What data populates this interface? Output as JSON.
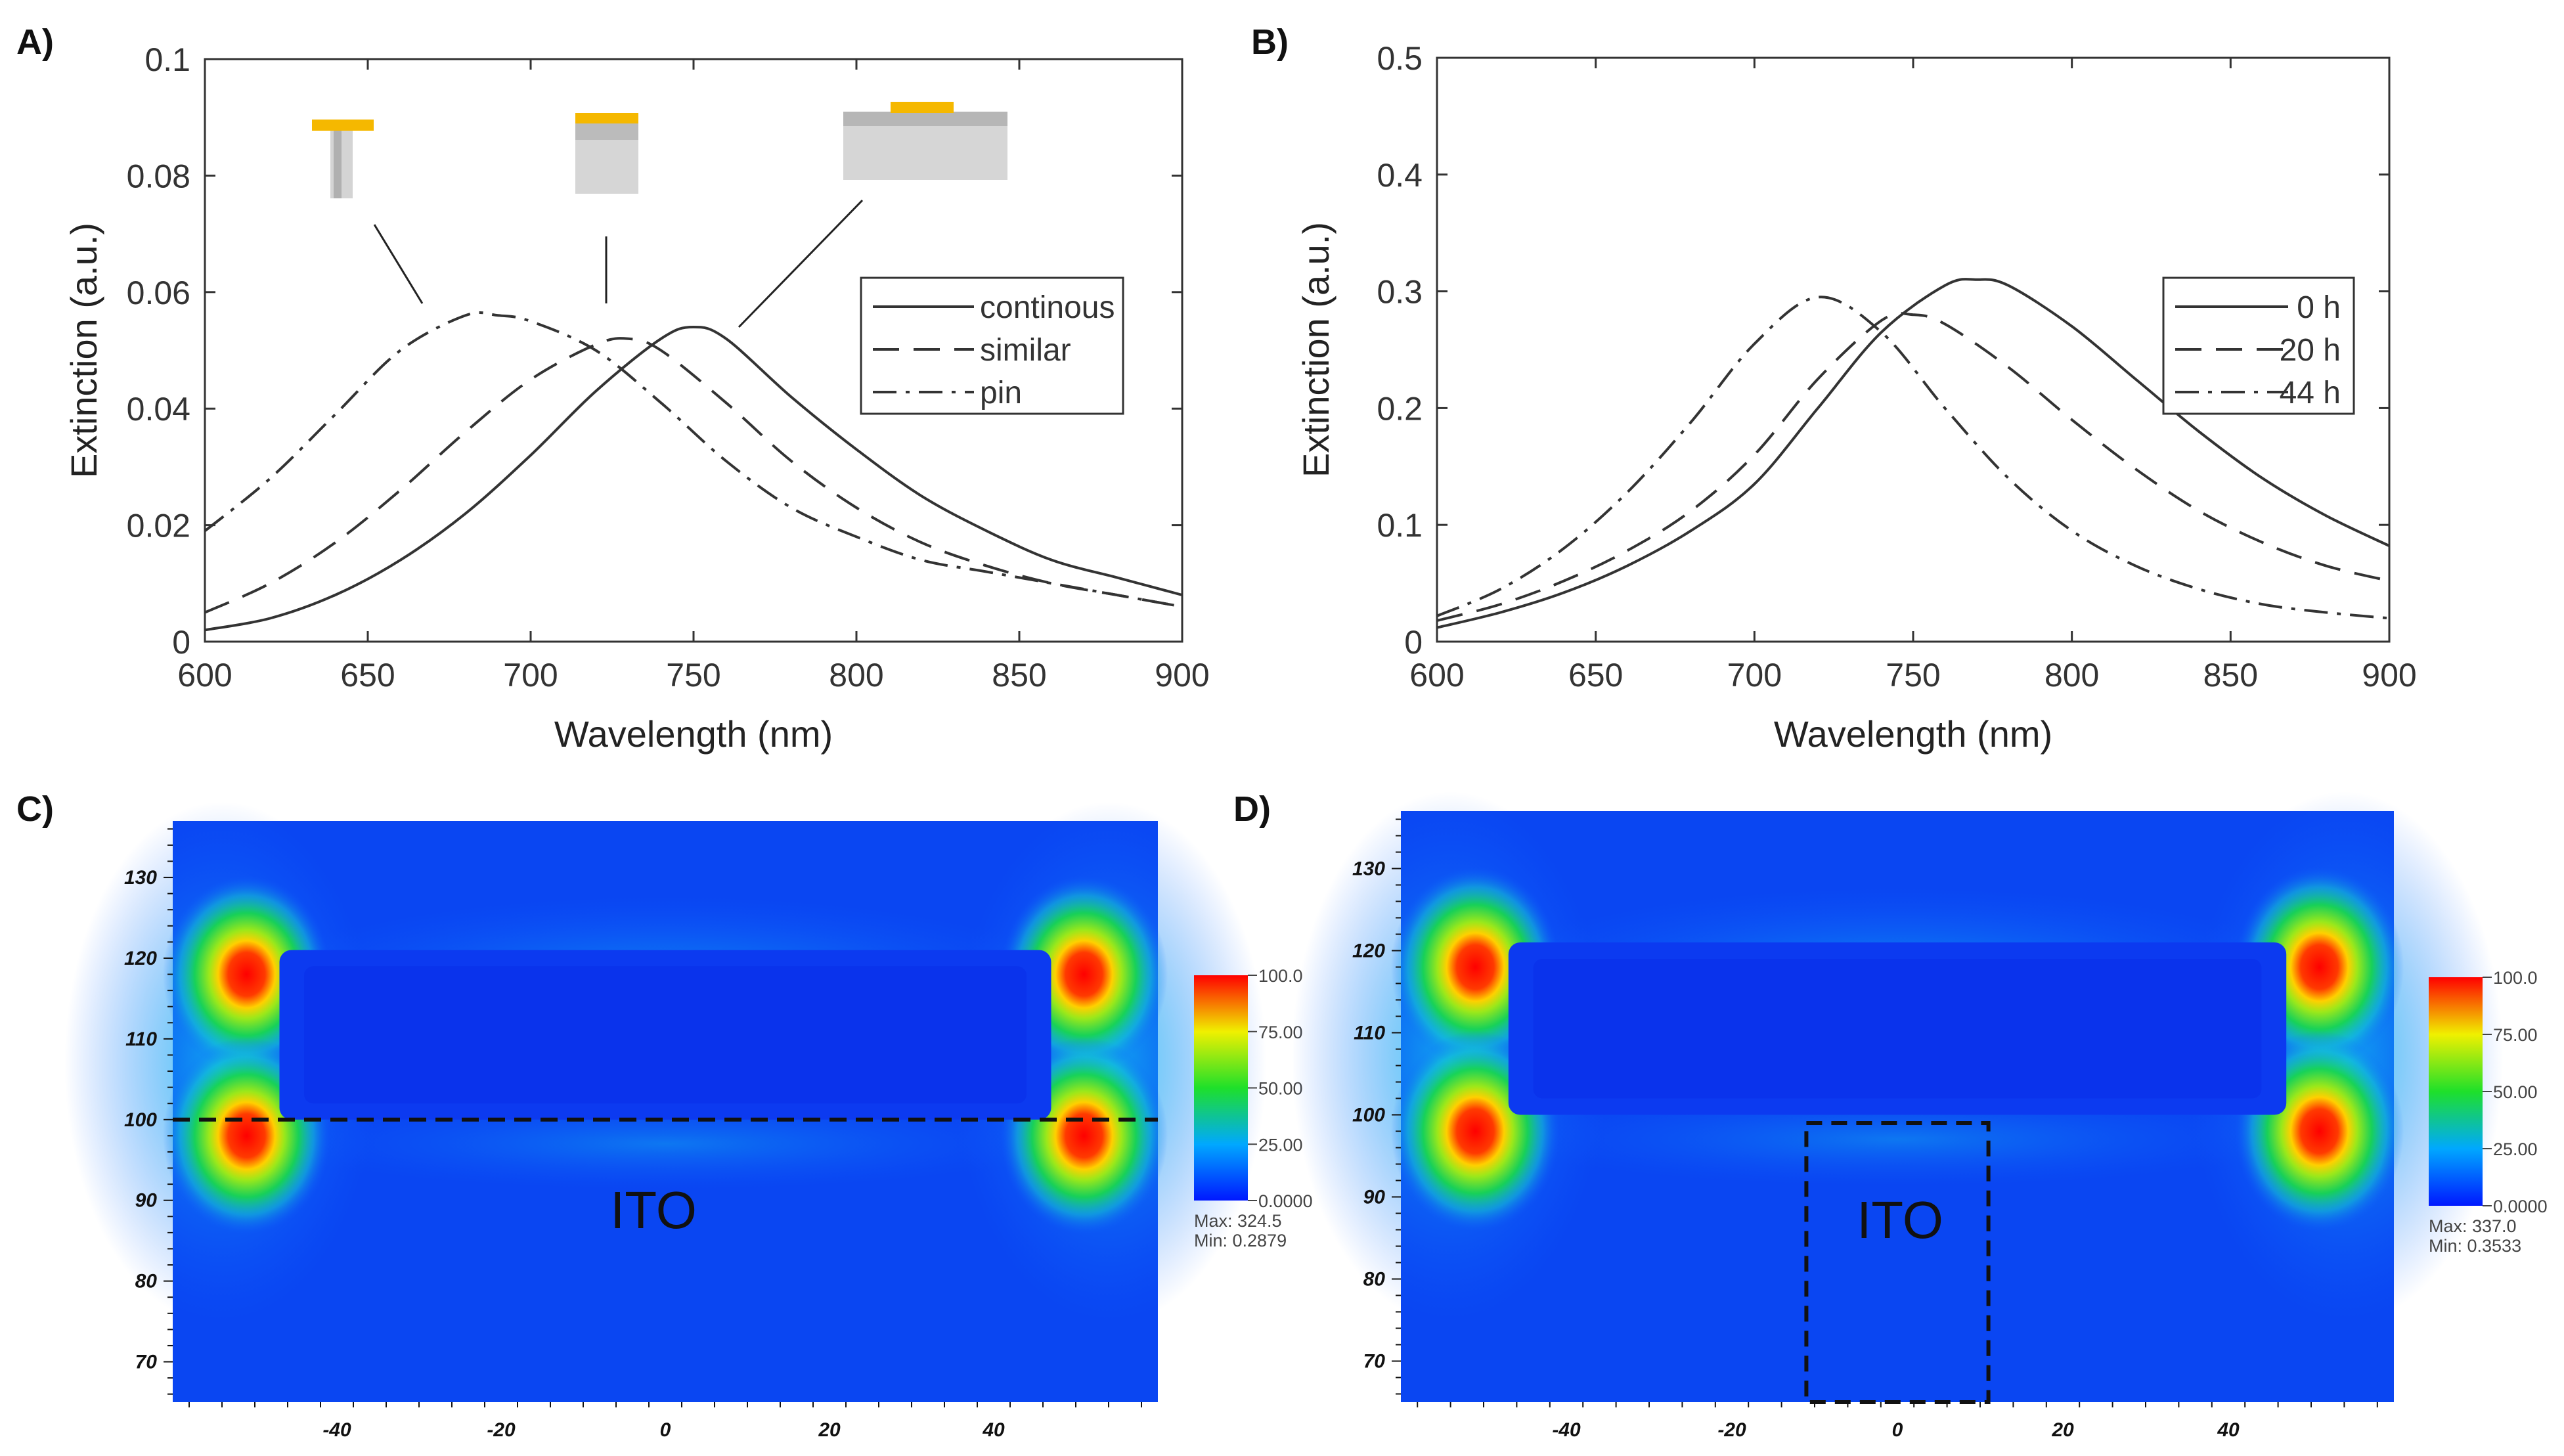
{
  "chart_data": [
    {
      "panel": "A)",
      "type": "line",
      "xlabel": "Wavelength (nm)",
      "ylabel": "Extinction (a.u.)",
      "xlim": [
        600,
        900
      ],
      "ylim": [
        0,
        0.1
      ],
      "xticks": [
        600,
        650,
        700,
        750,
        800,
        850,
        900
      ],
      "yticks": [
        0,
        0.02,
        0.04,
        0.06,
        0.08,
        0.1
      ],
      "ytick_labels": [
        "0",
        "0.02",
        "0.04",
        "0.06",
        "0.08",
        "0.1"
      ],
      "legend_position": "right",
      "insets": [
        "pin",
        "similar",
        "continous"
      ],
      "series": [
        {
          "name": "continous",
          "style": "solid",
          "x": [
            600,
            620,
            640,
            660,
            680,
            700,
            720,
            740,
            750,
            760,
            780,
            800,
            820,
            840,
            860,
            880,
            900
          ],
          "y": [
            0.002,
            0.004,
            0.008,
            0.014,
            0.022,
            0.032,
            0.043,
            0.052,
            0.054,
            0.052,
            0.042,
            0.033,
            0.025,
            0.019,
            0.014,
            0.011,
            0.008
          ]
        },
        {
          "name": "similar",
          "style": "dashed",
          "x": [
            600,
            620,
            640,
            660,
            680,
            700,
            720,
            730,
            740,
            760,
            780,
            800,
            820,
            840,
            860,
            880,
            900
          ],
          "y": [
            0.005,
            0.01,
            0.017,
            0.026,
            0.036,
            0.045,
            0.051,
            0.052,
            0.05,
            0.041,
            0.031,
            0.023,
            0.017,
            0.013,
            0.01,
            0.008,
            0.006
          ]
        },
        {
          "name": "pin",
          "style": "dashdot",
          "x": [
            600,
            620,
            640,
            660,
            680,
            690,
            700,
            720,
            740,
            760,
            780,
            800,
            820,
            840,
            860,
            880,
            900
          ],
          "y": [
            0.019,
            0.028,
            0.039,
            0.05,
            0.056,
            0.056,
            0.055,
            0.05,
            0.041,
            0.031,
            0.023,
            0.018,
            0.014,
            0.012,
            0.01,
            0.008,
            0.006
          ]
        }
      ]
    },
    {
      "panel": "B)",
      "type": "line",
      "xlabel": "Wavelength (nm)",
      "ylabel": "Extinction (a.u.)",
      "xlim": [
        600,
        900
      ],
      "ylim": [
        0,
        0.5
      ],
      "xticks": [
        600,
        650,
        700,
        750,
        800,
        850,
        900
      ],
      "yticks": [
        0,
        0.1,
        0.2,
        0.3,
        0.4,
        0.5
      ],
      "ytick_labels": [
        "0",
        "0.1",
        "0.2",
        "0.3",
        "0.4",
        "0.5"
      ],
      "legend_position": "right",
      "series": [
        {
          "name": "0 h",
          "style": "solid",
          "x": [
            600,
            620,
            640,
            660,
            680,
            700,
            720,
            740,
            760,
            770,
            780,
            800,
            820,
            840,
            860,
            880,
            900
          ],
          "y": [
            0.012,
            0.025,
            0.042,
            0.065,
            0.095,
            0.135,
            0.2,
            0.265,
            0.305,
            0.31,
            0.305,
            0.27,
            0.225,
            0.18,
            0.14,
            0.108,
            0.082
          ]
        },
        {
          "name": "20 h",
          "style": "dashed",
          "x": [
            600,
            620,
            640,
            660,
            680,
            700,
            720,
            740,
            750,
            760,
            780,
            800,
            820,
            840,
            860,
            880,
            900
          ],
          "y": [
            0.018,
            0.032,
            0.052,
            0.078,
            0.112,
            0.16,
            0.225,
            0.275,
            0.28,
            0.272,
            0.235,
            0.19,
            0.148,
            0.112,
            0.085,
            0.065,
            0.052
          ]
        },
        {
          "name": "44 h",
          "style": "dashdot",
          "x": [
            600,
            620,
            640,
            660,
            680,
            700,
            720,
            740,
            760,
            780,
            800,
            820,
            840,
            860,
            880,
            900
          ],
          "y": [
            0.022,
            0.045,
            0.08,
            0.128,
            0.188,
            0.255,
            0.295,
            0.265,
            0.2,
            0.14,
            0.095,
            0.065,
            0.045,
            0.032,
            0.025,
            0.02
          ]
        }
      ]
    },
    {
      "panel": "C)",
      "type": "heatmap",
      "region_label": "ITO",
      "xticks": [
        -40,
        -20,
        0,
        20,
        40
      ],
      "yticks": [
        70,
        80,
        90,
        100,
        110,
        120,
        130
      ],
      "colorbar_ticks": [
        "100.0",
        "75.00",
        "50.00",
        "25.00",
        "0.0000"
      ],
      "max_label": "Max: 324.5",
      "min_label": "Min: 0.2879"
    },
    {
      "panel": "D)",
      "type": "heatmap",
      "region_label": "ITO",
      "xticks": [
        -40,
        -20,
        0,
        20,
        40
      ],
      "yticks": [
        70,
        80,
        90,
        100,
        110,
        120,
        130
      ],
      "colorbar_ticks": [
        "100.0",
        "75.00",
        "50.00",
        "25.00",
        "0.0000"
      ],
      "max_label": "Max: 337.0",
      "min_label": "Min: 0.3533"
    }
  ]
}
